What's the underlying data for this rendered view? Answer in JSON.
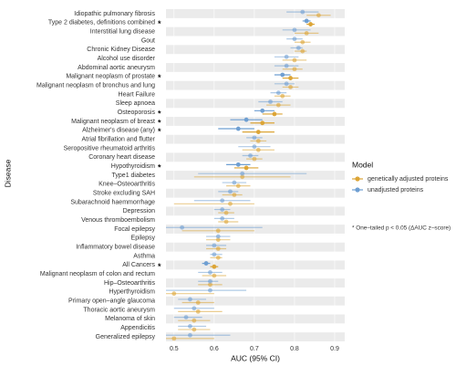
{
  "chart_data": {
    "type": "forest",
    "x_label": "AUC (95% CI)",
    "y_label": "Disease",
    "legend_title": "Model",
    "note": "* One–tailed p < 0.05 (ΔAUC z–score)",
    "xlim": [
      0.48,
      0.925
    ],
    "xticks": [
      0.5,
      0.6,
      0.7,
      0.8,
      0.9
    ],
    "categories": [
      "Idiopathic pulmonary fibrosis",
      "Type 2 diabetes,  definitions combined",
      "Interstitial lung disease",
      "Gout",
      "Chronic Kidney Disease",
      "Alcohol use disorder",
      "Abdominal aortic aneurysm",
      "Malignant neoplasm of prostate",
      "Malignant neoplasm of bronchus and lung",
      "Heart Failure",
      "Sleep apnoea",
      "Osteoporosis",
      "Malignant neoplasm of breast",
      "Alzheimer's disease (any)",
      "Atrial fibrillation and flutter",
      "Seropositive rheumatoid arthritis",
      "Coronary heart disease",
      "Hypothyroidism",
      "Type1 diabetes",
      "Knee–Osteoarthritis",
      "Stroke excluding SAH",
      "Subarachnoid haemmorrhage",
      "Depression",
      "Venous thromboembolism",
      "Focal epilepsy",
      "Epilepsy",
      "Inflammatory bowel disease",
      "Asthma",
      "All Cancers",
      "Malignant neoplasm of colon and rectum",
      "Hip–Osteoarthritis",
      "Hyperthyroidism",
      "Primary open–angle glaucoma",
      "Thoracic aortic aneurysm",
      "Melanoma of skin",
      "Appendicitis",
      "Generalized epilepsy"
    ],
    "significance_marks": [
      null,
      "*",
      null,
      null,
      null,
      null,
      null,
      "*",
      null,
      null,
      null,
      "*",
      "*",
      "*",
      null,
      null,
      null,
      "*",
      null,
      null,
      null,
      null,
      null,
      null,
      null,
      null,
      null,
      null,
      "*",
      null,
      null,
      null,
      null,
      null,
      null,
      null,
      null
    ],
    "series": [
      {
        "name": "genetically adjusted proteins",
        "color": "#dca537",
        "values": [
          0.86,
          0.84,
          0.83,
          0.82,
          0.82,
          0.8,
          0.8,
          0.79,
          0.79,
          0.77,
          0.76,
          0.75,
          0.72,
          0.71,
          0.71,
          0.71,
          0.7,
          0.68,
          0.67,
          0.66,
          0.65,
          0.64,
          0.63,
          0.63,
          0.61,
          0.61,
          0.61,
          0.61,
          0.6,
          0.6,
          0.59,
          0.5,
          0.56,
          0.56,
          0.55,
          0.55,
          0.5
        ],
        "lower": [
          0.83,
          0.83,
          0.8,
          0.8,
          0.8,
          0.77,
          0.77,
          0.77,
          0.77,
          0.75,
          0.73,
          0.72,
          0.69,
          0.67,
          0.69,
          0.67,
          0.68,
          0.65,
          0.55,
          0.63,
          0.62,
          0.5,
          0.61,
          0.61,
          0.52,
          0.58,
          0.58,
          0.59,
          0.59,
          0.57,
          0.56,
          0.48,
          0.52,
          0.51,
          0.51,
          0.51,
          0.48
        ],
        "upper": [
          0.89,
          0.85,
          0.86,
          0.84,
          0.83,
          0.83,
          0.82,
          0.81,
          0.81,
          0.79,
          0.79,
          0.77,
          0.75,
          0.75,
          0.73,
          0.75,
          0.72,
          0.71,
          0.79,
          0.69,
          0.67,
          0.7,
          0.65,
          0.66,
          0.7,
          0.64,
          0.63,
          0.62,
          0.61,
          0.63,
          0.62,
          0.6,
          0.6,
          0.62,
          0.59,
          0.59,
          0.6
        ]
      },
      {
        "name": "unadjusted proteins",
        "color": "#6f9fd2",
        "values": [
          0.82,
          0.83,
          0.8,
          0.8,
          0.81,
          0.78,
          0.78,
          0.77,
          0.78,
          0.76,
          0.74,
          0.72,
          0.68,
          0.66,
          0.7,
          0.7,
          0.69,
          0.66,
          0.67,
          0.65,
          0.64,
          0.62,
          0.62,
          0.62,
          0.52,
          0.61,
          0.6,
          0.6,
          0.58,
          0.59,
          0.59,
          0.59,
          0.54,
          0.55,
          0.53,
          0.54,
          0.54
        ],
        "lower": [
          0.78,
          0.82,
          0.77,
          0.78,
          0.79,
          0.75,
          0.75,
          0.75,
          0.75,
          0.74,
          0.71,
          0.7,
          0.64,
          0.61,
          0.68,
          0.66,
          0.67,
          0.63,
          0.56,
          0.62,
          0.61,
          0.55,
          0.6,
          0.6,
          0.48,
          0.58,
          0.58,
          0.59,
          0.57,
          0.56,
          0.56,
          0.48,
          0.51,
          0.5,
          0.5,
          0.51,
          0.48
        ],
        "upper": [
          0.86,
          0.84,
          0.84,
          0.82,
          0.82,
          0.81,
          0.81,
          0.79,
          0.8,
          0.78,
          0.77,
          0.75,
          0.72,
          0.7,
          0.72,
          0.74,
          0.71,
          0.69,
          0.83,
          0.68,
          0.66,
          0.69,
          0.64,
          0.65,
          0.72,
          0.64,
          0.63,
          0.62,
          0.59,
          0.62,
          0.61,
          0.68,
          0.58,
          0.6,
          0.57,
          0.58,
          0.64
        ]
      }
    ]
  }
}
